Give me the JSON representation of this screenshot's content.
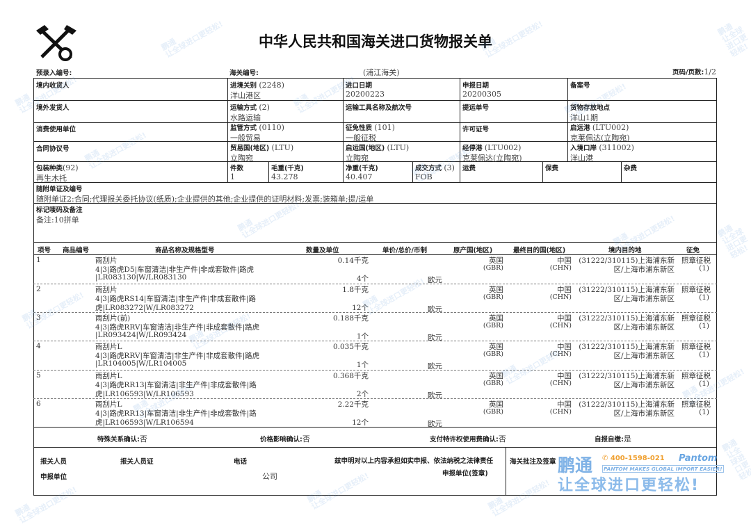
{
  "title": "中华人民共和国海关进口货物报关单",
  "header": {
    "pre_entry_label": "预录入编号:",
    "customs_no_label": "海关编号:",
    "customs_office": "(浦江海关)",
    "page_label": "页码/页数:",
    "page_value": "1/2"
  },
  "fields": {
    "consignee": {
      "label": "境内收货人",
      "value": ""
    },
    "entry_customs": {
      "label": "进境关别",
      "code": "(2248)",
      "value": "洋山港区"
    },
    "import_date": {
      "label": "进口日期",
      "value": "20200223"
    },
    "declare_date": {
      "label": "申报日期",
      "value": "20200305"
    },
    "record_no": {
      "label": "备案号",
      "value": ""
    },
    "consignor": {
      "label": "境外发货人",
      "value": ""
    },
    "transport_mode": {
      "label": "运输方式",
      "code": "(2)",
      "value": "水路运输"
    },
    "vessel": {
      "label": "运输工具名称及航次号",
      "value": ""
    },
    "bill_no": {
      "label": "提运单号",
      "value": ""
    },
    "storage": {
      "label": "货物存放地点",
      "value": "洋山1期"
    },
    "consumer": {
      "label": "消费使用单位",
      "value": ""
    },
    "supervision": {
      "label": "监管方式",
      "code": "(0110)",
      "value": "一般贸易"
    },
    "tax_nature": {
      "label": "征免性质",
      "code": "(101)",
      "value": "一般征税"
    },
    "license": {
      "label": "许可证号",
      "value": ""
    },
    "departure_port": {
      "label": "启运港",
      "code": "(LTU002)",
      "value": "克莱佩达(立陶宛)"
    },
    "contract": {
      "label": "合同协议号",
      "value": ""
    },
    "trade_country": {
      "label": "贸易国(地区)",
      "code": "(LTU)",
      "value": "立陶宛"
    },
    "origin_country": {
      "label": "启运国(地区)",
      "code": "(LTU)",
      "value": "立陶宛"
    },
    "transit_port": {
      "label": "经停港",
      "code": "(LTU002)",
      "value": "克莱佩达(立陶宛)"
    },
    "entry_port": {
      "label": "入境口岸",
      "code": "(311002)",
      "value": "洋山港"
    },
    "package_type": {
      "label": "包装种类",
      "code": "(92)",
      "value": "再生木托"
    },
    "pieces": {
      "label": "件数",
      "value": "1"
    },
    "gross_weight": {
      "label": "毛重(千克)",
      "value": "43.278"
    },
    "net_weight": {
      "label": "净重(千克)",
      "value": "40.407"
    },
    "deal_mode": {
      "label": "成交方式",
      "code": "(3)",
      "value": "FOB"
    },
    "freight": {
      "label": "运费",
      "value": ""
    },
    "insurance": {
      "label": "保费",
      "value": ""
    },
    "misc": {
      "label": "杂费",
      "value": ""
    },
    "documents": {
      "label": "随附单证及编号",
      "value": "随附单证2:合同;代理报关委托协议(纸质);企业提供的其他;企业提供的证明材料;发票;装箱单;提/运单"
    },
    "marks": {
      "label": "标记唛码及备注",
      "value": "备注:10拼单"
    }
  },
  "goods": {
    "columns": [
      "项号",
      "商品编号",
      "商品名称及规格型号",
      "数量及单位",
      "单价/总价/币制",
      "原产国(地区)",
      "最终目的国(地区)",
      "境内目的地",
      "征免"
    ],
    "rows": [
      {
        "no": "1",
        "name": "雨刮片",
        "spec1": "4|3|路虎D5|车窗清洁|非生产件|非成套散件|路虎",
        "spec2": "|LR083130|W/LR083130",
        "qty1": "0.14千克",
        "qty2": "4个",
        "currency": "欧元",
        "origin": "英国",
        "origin_code": "(GBR)",
        "dest": "中国",
        "dest_code": "(CHN)",
        "domestic1": "(31222/310115)上海浦东新",
        "domestic2": "区/上海市浦东新区",
        "levy1": "照章征税",
        "levy2": "(1)"
      },
      {
        "no": "2",
        "name": "雨刮片",
        "spec1": "4|3|路虎RS14|车窗清洁|非生产件|非成套散件|路",
        "spec2": "虎|LR083272|W/LR083272",
        "qty1": "1.8千克",
        "qty2": "12个",
        "currency": "欧元",
        "origin": "英国",
        "origin_code": "(GBR)",
        "dest": "中国",
        "dest_code": "(CHN)",
        "domestic1": "(31222/310115)上海浦东新",
        "domestic2": "区/上海市浦东新区",
        "levy1": "照章征税",
        "levy2": "(1)"
      },
      {
        "no": "3",
        "name": "雨刮片(前)",
        "spec1": "4|3|路虎RRV|车窗清洁|非生产件|非成套散件|路虎",
        "spec2": "|LR093424|W/LR093424",
        "qty1": "0.188千克",
        "qty2": "1个",
        "currency": "欧元",
        "origin": "英国",
        "origin_code": "(GBR)",
        "dest": "中国",
        "dest_code": "(CHN)",
        "domestic1": "(31222/310115)上海浦东新",
        "domestic2": "区/上海市浦东新区",
        "levy1": "照章征税",
        "levy2": "(1)"
      },
      {
        "no": "4",
        "name": "雨刮片L",
        "spec1": "4|3|路虎RRV|车窗清洁|非生产件|非成套散件|路虎",
        "spec2": "|LR104005|W/LR104005",
        "qty1": "0.035千克",
        "qty2": "1个",
        "currency": "欧元",
        "origin": "英国",
        "origin_code": "(GBR)",
        "dest": "中国",
        "dest_code": "(CHN)",
        "domestic1": "(31222/310115)上海浦东新",
        "domestic2": "区/上海市浦东新区",
        "levy1": "照章征税",
        "levy2": "(1)"
      },
      {
        "no": "5",
        "name": "雨刮片L",
        "spec1": "4|3|路虎RR13|车窗清洁|非生产件|非成套散件|路",
        "spec2": "虎|LR106593|W/LR106593",
        "qty1": "0.368千克",
        "qty2": "2个",
        "currency": "欧元",
        "origin": "英国",
        "origin_code": "(GBR)",
        "dest": "中国",
        "dest_code": "(CHN)",
        "domestic1": "(31222/310115)上海浦东新",
        "domestic2": "区/上海市浦东新区",
        "levy1": "照章征税",
        "levy2": "(1)"
      },
      {
        "no": "6",
        "name": "雨刮片L",
        "spec1": "4|3|路虎RR13|车窗清洁|非生产件|非成套散件|路",
        "spec2": "虎|LR106593|W/LR106594",
        "qty1": "2.22千克",
        "qty2": "12个",
        "currency": "欧元",
        "origin": "英国",
        "origin_code": "(GBR)",
        "dest": "中国",
        "dest_code": "(CHN)",
        "domestic1": "(31222/310115)上海浦东新",
        "domestic2": "区/上海市浦东新区",
        "levy1": "照章征税",
        "levy2": "(1)"
      }
    ]
  },
  "confirm": {
    "special_label": "特殊关系确认:",
    "special_value": "否",
    "price_label": "价格影响确认:",
    "price_value": "否",
    "royalty_label": "支付特许权使用费确认:",
    "royalty_value": "否",
    "self_label": "自报自缴:",
    "self_value": "是"
  },
  "footer": {
    "declarant": "报关人员",
    "declarant_cert": "报关人员证",
    "phone": "电话",
    "statement": "兹申明对以上内容承担如实申报、依法纳税之法律责任",
    "declare_unit": "申报单位",
    "company": "公司",
    "seal": "申报单位(签章)",
    "customs_note": "海关批注及签章"
  },
  "brand": {
    "name": "鹏通",
    "phone": "400-1598-021",
    "en": "Pantom",
    "slogan_en": "PANTOM MAKES GLOBAL IMPORT EASIER!",
    "slogan_cn": "让全球进口更轻松!",
    "color": "#3a86d4",
    "accent": "#f0a030"
  }
}
